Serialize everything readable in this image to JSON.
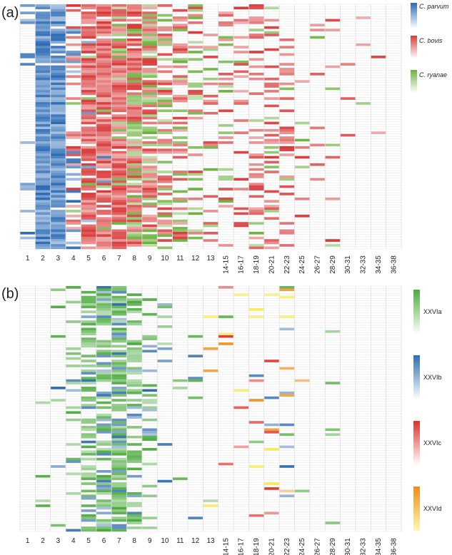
{
  "chart_data": [
    {
      "type": "heatmap",
      "panel_label": "(a)",
      "categories": [
        "1",
        "2",
        "3",
        "4",
        "5",
        "6",
        "7",
        "8",
        "9",
        "10",
        "11",
        "12",
        "13",
        "14-15",
        "16-17",
        "18-19",
        "20-21",
        "22-23",
        "24-25",
        "26-27",
        "28-29",
        "30-31",
        "32-33",
        "34-35",
        "36-38"
      ],
      "n_rows": 100,
      "legend": [
        {
          "name": "C. parvum",
          "color": "#2b6bb5"
        },
        {
          "name": "C. bovis",
          "color": "#d93a3a"
        },
        {
          "name": "C. ryanae",
          "color": "#6ab23c"
        }
      ],
      "column_fill_fraction": [
        0.12,
        0.97,
        0.97,
        0.35,
        0.85,
        0.92,
        0.95,
        0.9,
        0.8,
        0.5,
        0.42,
        0.3,
        0.2,
        0.2,
        0.22,
        0.32,
        0.35,
        0.32,
        0.12,
        0.06,
        0.1,
        0.06,
        0.05,
        0.03,
        0.01
      ],
      "column_series_weights": [
        [
          1,
          0,
          0
        ],
        [
          1,
          0,
          0
        ],
        [
          1,
          0,
          0
        ],
        [
          0.45,
          0.45,
          0.1
        ],
        [
          0.05,
          0.9,
          0.05
        ],
        [
          0.02,
          0.93,
          0.05
        ],
        [
          0,
          0.8,
          0.2
        ],
        [
          0,
          0.65,
          0.35
        ],
        [
          0,
          0.55,
          0.45
        ],
        [
          0,
          0.6,
          0.4
        ],
        [
          0,
          0.6,
          0.4
        ],
        [
          0,
          0.6,
          0.4
        ],
        [
          0,
          0.6,
          0.4
        ],
        [
          0,
          0.65,
          0.35
        ],
        [
          0,
          0.85,
          0.15
        ],
        [
          0,
          0.8,
          0.2
        ],
        [
          0,
          0.7,
          0.3
        ],
        [
          0,
          0.85,
          0.15
        ],
        [
          0,
          0.6,
          0.4
        ],
        [
          0,
          0.7,
          0.3
        ],
        [
          0,
          0.7,
          0.3
        ],
        [
          0,
          0.6,
          0.4
        ],
        [
          0,
          0.5,
          0.5
        ],
        [
          0,
          0.6,
          0.4
        ],
        [
          0,
          0.5,
          0.5
        ]
      ]
    },
    {
      "type": "heatmap",
      "panel_label": "(b)",
      "categories": [
        "1",
        "2",
        "3",
        "4",
        "5",
        "6",
        "7",
        "8",
        "9",
        "10",
        "11",
        "12",
        "13",
        "14-15",
        "16-17",
        "18-19",
        "20-21",
        "22-23",
        "24-25",
        "26-27",
        "28-29",
        "30-31",
        "32-33",
        "34-35",
        "36-38"
      ],
      "n_rows": 100,
      "legend": [
        {
          "name": "XXVIa",
          "color": "#4caa3e"
        },
        {
          "name": "XXVIb",
          "color": "#2f6db0"
        },
        {
          "name": "XXVIc",
          "color": "#e0302a"
        },
        {
          "name": "XXVId",
          "color": "#f08c1a"
        }
      ],
      "column_fill_fraction": [
        0,
        0.02,
        0.1,
        0.25,
        0.55,
        0.7,
        0.8,
        0.45,
        0.25,
        0.08,
        0.04,
        0.04,
        0.05,
        0.05,
        0.05,
        0.12,
        0.12,
        0.12,
        0.02,
        0,
        0.04,
        0,
        0,
        0,
        0
      ],
      "column_series_weights": [
        [
          1,
          0,
          0,
          0
        ],
        [
          1,
          0,
          0,
          0
        ],
        [
          0.85,
          0.15,
          0,
          0
        ],
        [
          0.85,
          0.15,
          0,
          0
        ],
        [
          0.88,
          0.12,
          0,
          0
        ],
        [
          0.7,
          0.3,
          0,
          0
        ],
        [
          0.85,
          0.15,
          0,
          0
        ],
        [
          0.85,
          0.15,
          0,
          0
        ],
        [
          0.7,
          0.3,
          0,
          0
        ],
        [
          0.5,
          0.5,
          0,
          0
        ],
        [
          0.6,
          0.4,
          0,
          0
        ],
        [
          0.4,
          0.6,
          0,
          0
        ],
        [
          0.3,
          0,
          0,
          0.7
        ],
        [
          0.2,
          0,
          0.4,
          0.4
        ],
        [
          0,
          0,
          0.5,
          0.5
        ],
        [
          0.1,
          0.1,
          0.3,
          0.5
        ],
        [
          0.1,
          0.3,
          0.2,
          0.4
        ],
        [
          0.1,
          0.3,
          0,
          0.6
        ],
        [
          0.2,
          0.4,
          0,
          0.4
        ],
        [
          0.5,
          0.5,
          0,
          0
        ],
        [
          0.5,
          0.5,
          0,
          0
        ],
        [
          0.5,
          0.5,
          0,
          0
        ],
        [
          0.5,
          0.5,
          0,
          0
        ],
        [
          0.5,
          0.5,
          0,
          0
        ],
        [
          0.5,
          0.5,
          0,
          0
        ]
      ]
    }
  ]
}
